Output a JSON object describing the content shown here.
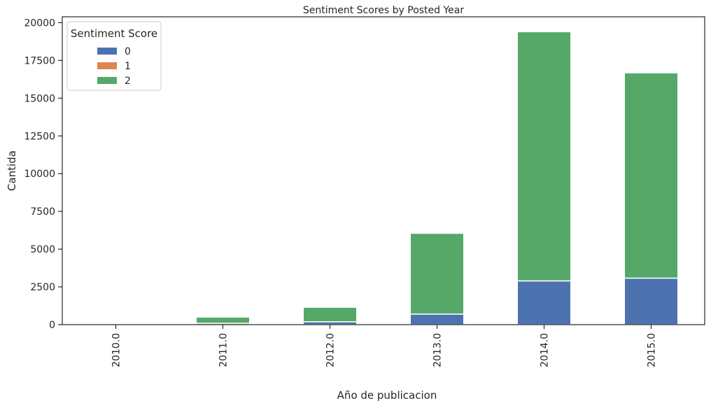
{
  "chart_data": {
    "type": "bar",
    "stacked": true,
    "title": "Sentiment Scores by Posted Year",
    "xlabel": "Año de publicacion",
    "ylabel": "Cantida",
    "categories": [
      "2010.0",
      "2011.0",
      "2012.0",
      "2013.0",
      "2014.0",
      "2015.0"
    ],
    "ylim": [
      0,
      20390
    ],
    "yticks": [
      0,
      2500,
      5000,
      7500,
      10000,
      12500,
      15000,
      17500,
      20000
    ],
    "grid": false,
    "legend": {
      "title": "Sentiment Score",
      "position": "top-left"
    },
    "series": [
      {
        "name": "0",
        "color": "#4c72b0",
        "values": [
          0,
          90,
          190,
          700,
          2900,
          3080
        ]
      },
      {
        "name": "1",
        "color": "#dd8452",
        "values": [
          0,
          0,
          0,
          0,
          0,
          0
        ]
      },
      {
        "name": "2",
        "color": "#55a868",
        "values": [
          0,
          410,
          960,
          5350,
          16500,
          13600
        ]
      }
    ]
  }
}
